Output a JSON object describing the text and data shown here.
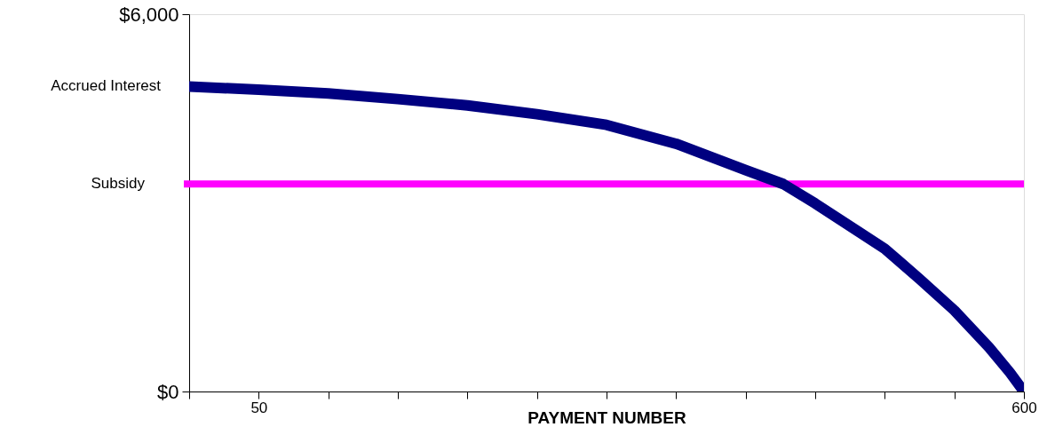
{
  "chart_data": {
    "type": "line",
    "xlabel": "PAYMENT NUMBER",
    "x": [
      0,
      50,
      100,
      150,
      200,
      250,
      300,
      350,
      400,
      427,
      450,
      500,
      525,
      550,
      575,
      590,
      600
    ],
    "series": [
      {
        "name": "Accrued Interest",
        "color": "#000080",
        "values": [
          4850,
          4800,
          4740,
          4650,
          4550,
          4410,
          4240,
          3940,
          3520,
          3300,
          2990,
          2270,
          1790,
          1290,
          700,
          300,
          0
        ]
      }
    ],
    "xlim": [
      0,
      600
    ],
    "xticks": [
      {
        "value": 0,
        "label": null
      },
      50,
      {
        "value": 100,
        "label": null
      },
      {
        "value": 150,
        "label": null
      },
      {
        "value": 200,
        "label": null
      },
      {
        "value": 250,
        "label": null
      },
      {
        "value": 300,
        "label": null
      },
      {
        "value": 350,
        "label": null
      },
      {
        "value": 400,
        "label": null
      },
      {
        "value": 450,
        "label": null
      },
      {
        "value": 500,
        "label": null
      },
      {
        "value": 550,
        "label": null
      },
      600
    ],
    "ylim": [
      0,
      6000
    ],
    "yticks": [
      {
        "value": 0,
        "label": "$0"
      },
      {
        "value": 6000,
        "label": "$6,000"
      }
    ],
    "ref_lines": [
      {
        "axis": "y",
        "value": 3300,
        "label": "Subsidy",
        "color": "#ff00ff"
      }
    ],
    "grid": false
  }
}
